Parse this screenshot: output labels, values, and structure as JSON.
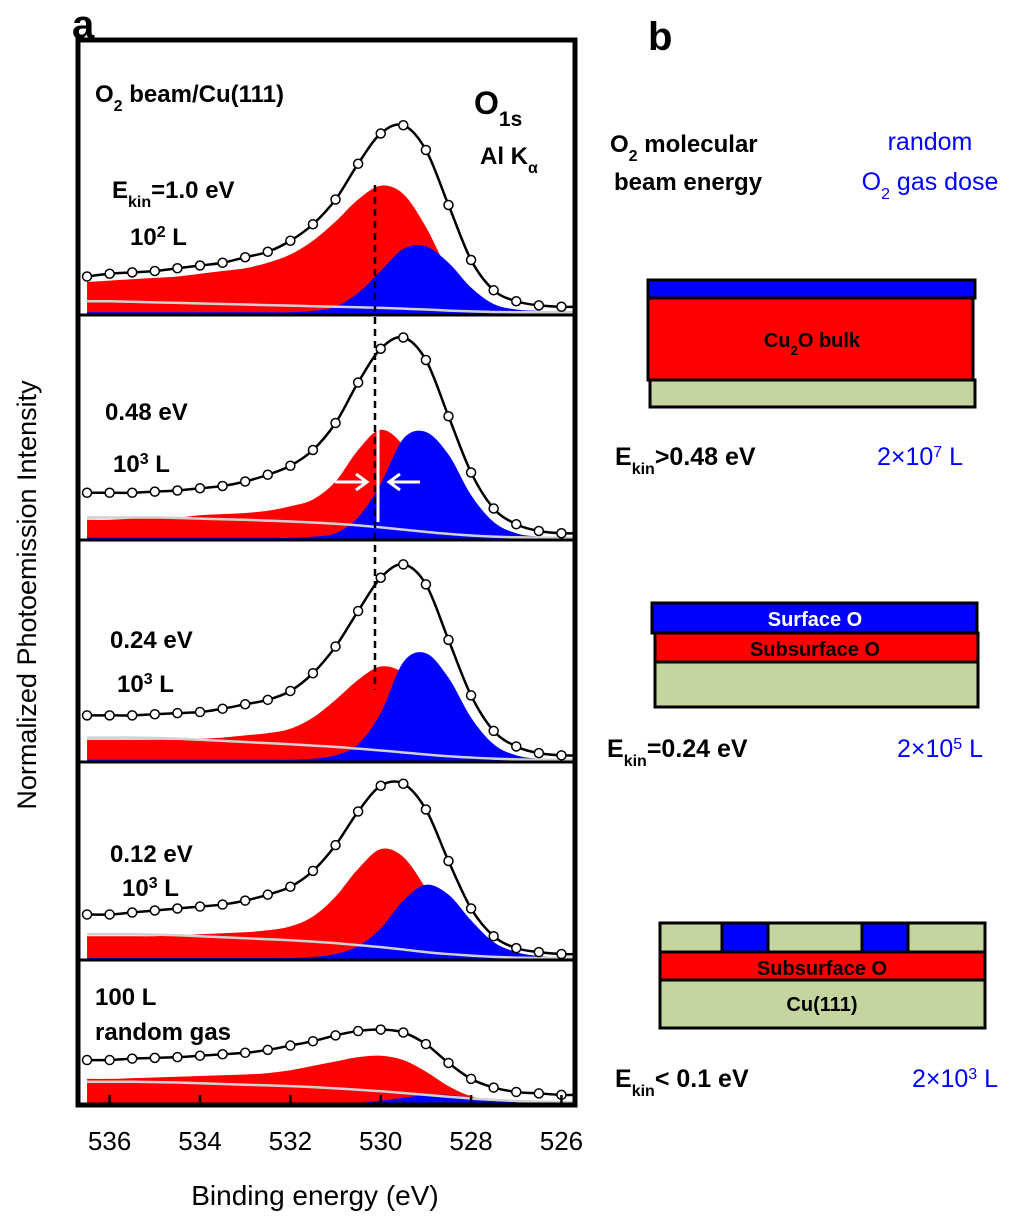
{
  "figure_labels": [
    "a",
    "b"
  ],
  "chart_data": {
    "type": "line",
    "x_label": "Binding energy (eV)",
    "y_label": "Normalized Photoemission Intensity",
    "xlim": [
      536.7,
      525.7
    ],
    "xticks": [
      536,
      534,
      532,
      530,
      528,
      526
    ],
    "x": [
      536.5,
      536,
      535.5,
      535,
      534.5,
      534,
      533.5,
      533,
      532.5,
      532,
      531.5,
      531,
      530.5,
      530,
      529.5,
      529,
      528.5,
      528,
      527.5,
      527,
      526.5,
      526,
      525.5
    ],
    "annotations": [
      [
        {
          "text": "O"
        },
        {
          "text": "1s",
          "script": "sub"
        }
      ],
      [
        {
          "text": "Al K"
        },
        {
          "text": "α",
          "script": "sub"
        }
      ]
    ],
    "panels": [
      {
        "ylim": [
          0,
          100
        ],
        "labels": [
          [
            {
              "text": "O"
            },
            {
              "text": "2",
              "script": "sub"
            },
            {
              "text": " beam/Cu(111)"
            }
          ],
          [
            {
              "text": "E"
            },
            {
              "text": "kin",
              "script": "sub"
            },
            {
              "text": "=1.0 eV"
            }
          ],
          [
            {
              "text": "10"
            },
            {
              "text": "2",
              "script": "sup"
            },
            {
              "text": " L"
            }
          ]
        ],
        "series": [
          {
            "kind": "area",
            "color": "#ff0000",
            "values": [
              12,
              12.5,
              13,
              13.5,
              14,
              15,
              16,
              17,
              19,
              22,
              27,
              34,
              42,
              47,
              44,
              32,
              16,
              6,
              2,
              1,
              1,
              1,
              1
            ]
          },
          {
            "kind": "area",
            "color": "#0000ff",
            "values": [
              1,
              1,
              1,
              1,
              1,
              1,
              1,
              1,
              1,
              1,
              1.5,
              3,
              8,
              16,
              24,
              25,
              19,
              10,
              4,
              2,
              1.5,
              1,
              1
            ]
          },
          {
            "kind": "line",
            "color": "#d0d0d0",
            "values": [
              5,
              5,
              4.8,
              4.6,
              4.4,
              4.2,
              4,
              3.8,
              3.6,
              3.4,
              3.2,
              3,
              2.8,
              2.6,
              2.3,
              2,
              1.6,
              1.3,
              1.1,
              1,
              1,
              1,
              1
            ]
          },
          {
            "kind": "line-markers",
            "color": "#000000",
            "values": [
              14,
              15,
              15.5,
              16,
              17,
              18,
              19,
              21,
              23,
              27,
              33,
              42,
              55,
              66,
              69,
              60,
              40,
              20,
              9,
              5,
              3.5,
              3,
              3
            ]
          }
        ]
      },
      {
        "ylim": [
          0,
          100
        ],
        "labels": [
          [
            {
              "text": "0.48 eV"
            }
          ],
          [
            {
              "text": "10"
            },
            {
              "text": "3",
              "script": "sup"
            },
            {
              "text": " L"
            }
          ]
        ],
        "series": [
          {
            "kind": "area",
            "color": "#ff0000",
            "values": [
              9,
              9,
              9.5,
              10,
              10,
              11,
              11.5,
              12,
              13,
              15,
              18,
              26,
              40,
              49,
              42,
              25,
              10,
              4,
              2,
              1,
              1,
              1,
              1
            ]
          },
          {
            "kind": "area",
            "color": "#0000ff",
            "values": [
              1,
              1,
              1,
              1,
              1,
              1,
              1,
              1,
              1,
              1,
              1.5,
              3,
              10,
              25,
              45,
              48,
              38,
              20,
              8,
              3,
              1.5,
              1,
              1
            ]
          },
          {
            "kind": "line",
            "color": "#d0d0d0",
            "values": [
              10,
              10,
              10,
              10,
              9.8,
              9.5,
              9.2,
              9,
              8.6,
              8.2,
              7.8,
              7.2,
              6.5,
              5.6,
              4.6,
              3.6,
              2.7,
              2,
              1.5,
              1.2,
              1,
              1,
              1
            ]
          },
          {
            "kind": "line-markers",
            "color": "#000000",
            "values": [
              21,
              21,
              21,
              21.5,
              22,
              23,
              24,
              26,
              29,
              33,
              40,
              52,
              70,
              85,
              90,
              80,
              55,
              30,
              14,
              7,
              4,
              3,
              3
            ]
          }
        ]
      },
      {
        "ylim": [
          0,
          100
        ],
        "labels": [
          [
            {
              "text": "0.24 eV"
            }
          ],
          [
            {
              "text": "10"
            },
            {
              "text": "3",
              "script": "sup"
            },
            {
              "text": " L"
            }
          ]
        ],
        "series": [
          {
            "kind": "area",
            "color": "#ff0000",
            "values": [
              10,
              10,
              10,
              10,
              10,
              10.5,
              11,
              12,
              13,
              15,
              20,
              28,
              37,
              43,
              40,
              28,
              12,
              4,
              2,
              1,
              1,
              1,
              1
            ]
          },
          {
            "kind": "area",
            "color": "#0000ff",
            "values": [
              1,
              1,
              1,
              1,
              1,
              1,
              1,
              1,
              1,
              1,
              1.5,
              3,
              8,
              22,
              45,
              49,
              38,
              20,
              8,
              3,
              1.5,
              1,
              1
            ]
          },
          {
            "kind": "line",
            "color": "#d0d0d0",
            "values": [
              11,
              11,
              11,
              10.8,
              10.5,
              10,
              9.5,
              9,
              8.5,
              8,
              7.4,
              6.8,
              6,
              5.2,
              4.3,
              3.4,
              2.6,
              2,
              1.5,
              1.2,
              1,
              1,
              1
            ]
          },
          {
            "kind": "line-markers",
            "color": "#000000",
            "values": [
              21,
              21,
              21,
              21.5,
              22,
              22.5,
              24,
              26,
              28,
              32,
              40,
              52,
              68,
              83,
              89,
              80,
              55,
              30,
              14,
              7,
              4,
              3,
              3
            ]
          }
        ]
      },
      {
        "ylim": [
          0,
          100
        ],
        "labels": [
          [
            {
              "text": "0.12 eV"
            }
          ],
          [
            {
              "text": "10"
            },
            {
              "text": "3",
              "script": "sup"
            },
            {
              "text": " L"
            }
          ]
        ],
        "series": [
          {
            "kind": "area",
            "color": "#ff0000",
            "values": [
              12,
              12,
              12,
              12,
              12.5,
              13,
              13.5,
              14,
              15,
              17,
              22,
              32,
              46,
              56,
              52,
              36,
              16,
              6,
              2,
              1,
              1,
              1,
              1
            ]
          },
          {
            "kind": "area",
            "color": "#0000ff",
            "values": [
              1,
              1,
              1,
              1,
              1,
              1,
              1,
              1,
              1,
              1,
              1.5,
              3,
              7,
              16,
              30,
              38,
              33,
              20,
              9,
              4,
              2,
              1,
              1
            ]
          },
          {
            "kind": "line",
            "color": "#d0d0d0",
            "values": [
              13,
              13,
              13,
              12.8,
              12.5,
              12,
              11.5,
              11,
              10.5,
              10,
              9.3,
              8.5,
              7.5,
              6.5,
              5.3,
              4,
              3,
              2.2,
              1.6,
              1.2,
              1,
              1,
              1
            ]
          },
          {
            "kind": "line-markers",
            "color": "#000000",
            "values": [
              23,
              23,
              24,
              25,
              26,
              27,
              28,
              30,
              33,
              37,
              45,
              58,
              75,
              88,
              89,
              76,
              50,
              26,
              12,
              6,
              4,
              3,
              3
            ]
          }
        ]
      },
      {
        "ylim": [
          0,
          100
        ],
        "labels": [
          [
            {
              "text": "100 L"
            }
          ],
          [
            {
              "text": "random gas"
            }
          ]
        ],
        "series": [
          {
            "kind": "area",
            "color": "#ff0000",
            "values": [
              18,
              18,
              18.5,
              19,
              19.5,
              20,
              20.5,
              21,
              22,
              24,
              27,
              30,
              33,
              34,
              31,
              23,
              13,
              6,
              3,
              2,
              1.5,
              1,
              1
            ]
          },
          {
            "kind": "area",
            "color": "#0000ff",
            "values": [
              1,
              1,
              1,
              1,
              1,
              1,
              1,
              1,
              1,
              1,
              1,
              1,
              1.5,
              3,
              5,
              7,
              7,
              5,
              3,
              2,
              1.5,
              1,
              1
            ]
          },
          {
            "kind": "line",
            "color": "#d0d0d0",
            "values": [
              16,
              16,
              16,
              15.8,
              15.5,
              15,
              14.5,
              14,
              13.5,
              13,
              12.3,
              11.5,
              10.5,
              9.5,
              8.3,
              7,
              5.7,
              4.5,
              3.5,
              2.8,
              2.2,
              2,
              2
            ]
          },
          {
            "kind": "line-markers",
            "color": "#000000",
            "values": [
              31,
              31,
              32,
              32.5,
              33,
              34,
              35,
              36,
              38,
              41,
              44,
              48,
              51,
              52,
              50,
              42,
              29,
              18,
              12,
              9,
              8,
              7,
              7
            ]
          }
        ]
      }
    ]
  },
  "schematic": {
    "header_energy": [
      [
        {
          "text": "O"
        },
        {
          "text": "2",
          "script": "sub"
        },
        {
          "text": " molecular"
        }
      ],
      [
        {
          "text": "beam energy"
        }
      ]
    ],
    "header_dose": [
      [
        {
          "text": "random"
        }
      ],
      [
        {
          "text": "O"
        },
        {
          "text": "2",
          "script": "sub"
        },
        {
          "text": " gas dose"
        }
      ]
    ],
    "structures": [
      {
        "labels": [
          [
            {
              "text": "Cu"
            },
            {
              "text": "2",
              "script": "sub"
            },
            {
              "text": "O bulk"
            }
          ]
        ],
        "energy": [
          {
            "text": "E"
          },
          {
            "text": "kin",
            "script": "sub"
          },
          {
            "text": ">0.48 eV"
          }
        ],
        "dose": [
          {
            "text": "2×10"
          },
          {
            "text": "7",
            "script": "sup"
          },
          {
            "text": " L"
          }
        ]
      },
      {
        "labels": [
          [
            {
              "text": "Surface O"
            }
          ],
          [
            {
              "text": "Subsurface O"
            }
          ]
        ],
        "energy": [
          {
            "text": "E"
          },
          {
            "text": "kin",
            "script": "sub"
          },
          {
            "text": "=0.24 eV"
          }
        ],
        "dose": [
          {
            "text": "2×10"
          },
          {
            "text": "5",
            "script": "sup"
          },
          {
            "text": " L"
          }
        ]
      },
      {
        "labels": [
          [
            {
              "text": "Subsurface O"
            }
          ],
          [
            {
              "text": "Cu(111)"
            }
          ]
        ],
        "energy": [
          {
            "text": "E"
          },
          {
            "text": "kin",
            "script": "sub"
          },
          {
            "text": "< 0.1 eV"
          }
        ],
        "dose": [
          {
            "text": "2×10"
          },
          {
            "text": "3",
            "script": "sup"
          },
          {
            "text": " L"
          }
        ]
      }
    ]
  }
}
